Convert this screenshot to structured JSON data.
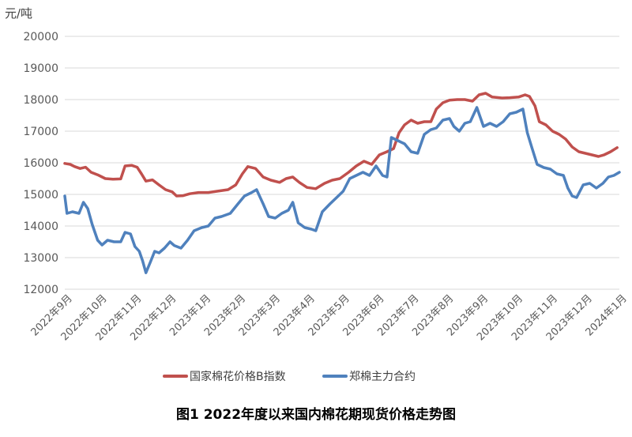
{
  "caption": "图1 2022年度以来国内棉花期现货价格走势图",
  "chart_data": {
    "type": "line",
    "unit_label": "元/吨",
    "ylim": [
      12000,
      20000
    ],
    "yticks": [
      12000,
      13000,
      14000,
      15000,
      16000,
      17000,
      18000,
      19000,
      20000
    ],
    "grid": true,
    "legend_position": "bottom",
    "categories": [
      "2022年9月",
      "2022年10月",
      "2022年11月",
      "2022年12月",
      "2023年1月",
      "2023年2月",
      "2023年3月",
      "2023年4月",
      "2023年5月",
      "2023年6月",
      "2023年7月",
      "2023年8月",
      "2023年9月",
      "2023年10月",
      "2023年11月",
      "2023年12月",
      "2024年1月"
    ],
    "x_start": "2022-09-01",
    "x_end": "2024-01-20",
    "series": [
      {
        "name": "国家棉花价格B指数",
        "color": "#c0504d",
        "points": [
          [
            "2022-09-01",
            15980
          ],
          [
            "2022-09-06",
            15950
          ],
          [
            "2022-09-10",
            15880
          ],
          [
            "2022-09-15",
            15820
          ],
          [
            "2022-09-20",
            15860
          ],
          [
            "2022-09-25",
            15700
          ],
          [
            "2022-10-01",
            15620
          ],
          [
            "2022-10-08",
            15500
          ],
          [
            "2022-10-15",
            15480
          ],
          [
            "2022-10-22",
            15490
          ],
          [
            "2022-10-26",
            15900
          ],
          [
            "2022-11-01",
            15920
          ],
          [
            "2022-11-06",
            15860
          ],
          [
            "2022-11-10",
            15650
          ],
          [
            "2022-11-14",
            15420
          ],
          [
            "2022-11-20",
            15460
          ],
          [
            "2022-11-26",
            15300
          ],
          [
            "2022-12-02",
            15150
          ],
          [
            "2022-12-08",
            15080
          ],
          [
            "2022-12-12",
            14950
          ],
          [
            "2022-12-18",
            14960
          ],
          [
            "2022-12-24",
            15020
          ],
          [
            "2023-01-01",
            15060
          ],
          [
            "2023-01-10",
            15060
          ],
          [
            "2023-01-18",
            15100
          ],
          [
            "2023-01-28",
            15150
          ],
          [
            "2023-02-04",
            15300
          ],
          [
            "2023-02-10",
            15650
          ],
          [
            "2023-02-15",
            15880
          ],
          [
            "2023-02-22",
            15820
          ],
          [
            "2023-03-01",
            15550
          ],
          [
            "2023-03-08",
            15450
          ],
          [
            "2023-03-16",
            15380
          ],
          [
            "2023-03-22",
            15500
          ],
          [
            "2023-03-28",
            15550
          ],
          [
            "2023-04-03",
            15380
          ],
          [
            "2023-04-10",
            15220
          ],
          [
            "2023-04-18",
            15180
          ],
          [
            "2023-04-26",
            15350
          ],
          [
            "2023-05-03",
            15450
          ],
          [
            "2023-05-10",
            15500
          ],
          [
            "2023-05-18",
            15700
          ],
          [
            "2023-05-25",
            15900
          ],
          [
            "2023-06-01",
            16050
          ],
          [
            "2023-06-08",
            15950
          ],
          [
            "2023-06-15",
            16250
          ],
          [
            "2023-06-22",
            16350
          ],
          [
            "2023-06-28",
            16450
          ],
          [
            "2023-07-03",
            16950
          ],
          [
            "2023-07-08",
            17200
          ],
          [
            "2023-07-14",
            17350
          ],
          [
            "2023-07-20",
            17250
          ],
          [
            "2023-07-26",
            17300
          ],
          [
            "2023-08-01",
            17300
          ],
          [
            "2023-08-06",
            17700
          ],
          [
            "2023-08-12",
            17900
          ],
          [
            "2023-08-18",
            17980
          ],
          [
            "2023-08-25",
            18000
          ],
          [
            "2023-09-01",
            18000
          ],
          [
            "2023-09-08",
            17950
          ],
          [
            "2023-09-14",
            18150
          ],
          [
            "2023-09-20",
            18200
          ],
          [
            "2023-09-26",
            18080
          ],
          [
            "2023-10-05",
            18050
          ],
          [
            "2023-10-12",
            18060
          ],
          [
            "2023-10-20",
            18080
          ],
          [
            "2023-10-26",
            18150
          ],
          [
            "2023-10-30",
            18100
          ],
          [
            "2023-11-04",
            17800
          ],
          [
            "2023-11-08",
            17300
          ],
          [
            "2023-11-14",
            17200
          ],
          [
            "2023-11-20",
            17000
          ],
          [
            "2023-11-26",
            16900
          ],
          [
            "2023-12-02",
            16750
          ],
          [
            "2023-12-08",
            16500
          ],
          [
            "2023-12-14",
            16350
          ],
          [
            "2023-12-20",
            16300
          ],
          [
            "2023-12-26",
            16250
          ],
          [
            "2024-01-01",
            16200
          ],
          [
            "2024-01-06",
            16250
          ],
          [
            "2024-01-12",
            16350
          ],
          [
            "2024-01-18",
            16480
          ]
        ]
      },
      {
        "name": "郑棉主力合约",
        "color": "#4f81bd",
        "points": [
          [
            "2022-09-01",
            14950
          ],
          [
            "2022-09-03",
            14400
          ],
          [
            "2022-09-08",
            14450
          ],
          [
            "2022-09-14",
            14400
          ],
          [
            "2022-09-18",
            14750
          ],
          [
            "2022-09-22",
            14550
          ],
          [
            "2022-09-26",
            14050
          ],
          [
            "2022-10-01",
            13550
          ],
          [
            "2022-10-05",
            13400
          ],
          [
            "2022-10-10",
            13550
          ],
          [
            "2022-10-16",
            13500
          ],
          [
            "2022-10-22",
            13500
          ],
          [
            "2022-10-26",
            13800
          ],
          [
            "2022-10-31",
            13750
          ],
          [
            "2022-11-04",
            13350
          ],
          [
            "2022-11-08",
            13200
          ],
          [
            "2022-11-11",
            12900
          ],
          [
            "2022-11-14",
            12520
          ],
          [
            "2022-11-18",
            12850
          ],
          [
            "2022-11-22",
            13200
          ],
          [
            "2022-11-26",
            13150
          ],
          [
            "2022-12-01",
            13300
          ],
          [
            "2022-12-06",
            13500
          ],
          [
            "2022-12-10",
            13380
          ],
          [
            "2022-12-16",
            13300
          ],
          [
            "2022-12-22",
            13550
          ],
          [
            "2022-12-28",
            13850
          ],
          [
            "2023-01-04",
            13950
          ],
          [
            "2023-01-10",
            14000
          ],
          [
            "2023-01-16",
            14250
          ],
          [
            "2023-01-22",
            14300
          ],
          [
            "2023-01-30",
            14400
          ],
          [
            "2023-02-06",
            14700
          ],
          [
            "2023-02-12",
            14950
          ],
          [
            "2023-02-18",
            15050
          ],
          [
            "2023-02-23",
            15150
          ],
          [
            "2023-03-01",
            14700
          ],
          [
            "2023-03-06",
            14300
          ],
          [
            "2023-03-12",
            14250
          ],
          [
            "2023-03-18",
            14400
          ],
          [
            "2023-03-24",
            14500
          ],
          [
            "2023-03-28",
            14750
          ],
          [
            "2023-04-02",
            14100
          ],
          [
            "2023-04-08",
            13950
          ],
          [
            "2023-04-14",
            13900
          ],
          [
            "2023-04-18",
            13850
          ],
          [
            "2023-04-24",
            14450
          ],
          [
            "2023-05-01",
            14700
          ],
          [
            "2023-05-07",
            14900
          ],
          [
            "2023-05-13",
            15100
          ],
          [
            "2023-05-19",
            15500
          ],
          [
            "2023-05-25",
            15600
          ],
          [
            "2023-05-31",
            15700
          ],
          [
            "2023-06-06",
            15600
          ],
          [
            "2023-06-12",
            15900
          ],
          [
            "2023-06-18",
            15600
          ],
          [
            "2023-06-22",
            15550
          ],
          [
            "2023-06-26",
            16800
          ],
          [
            "2023-07-02",
            16700
          ],
          [
            "2023-07-08",
            16600
          ],
          [
            "2023-07-14",
            16350
          ],
          [
            "2023-07-20",
            16300
          ],
          [
            "2023-07-26",
            16900
          ],
          [
            "2023-08-01",
            17050
          ],
          [
            "2023-08-06",
            17100
          ],
          [
            "2023-08-12",
            17350
          ],
          [
            "2023-08-18",
            17400
          ],
          [
            "2023-08-22",
            17150
          ],
          [
            "2023-08-27",
            17000
          ],
          [
            "2023-09-01",
            17250
          ],
          [
            "2023-09-06",
            17300
          ],
          [
            "2023-09-12",
            17750
          ],
          [
            "2023-09-18",
            17150
          ],
          [
            "2023-09-24",
            17250
          ],
          [
            "2023-09-30",
            17150
          ],
          [
            "2023-10-06",
            17300
          ],
          [
            "2023-10-12",
            17550
          ],
          [
            "2023-10-18",
            17600
          ],
          [
            "2023-10-24",
            17700
          ],
          [
            "2023-10-28",
            16950
          ],
          [
            "2023-11-01",
            16500
          ],
          [
            "2023-11-06",
            15950
          ],
          [
            "2023-11-12",
            15850
          ],
          [
            "2023-11-18",
            15800
          ],
          [
            "2023-11-24",
            15650
          ],
          [
            "2023-11-30",
            15600
          ],
          [
            "2023-12-04",
            15200
          ],
          [
            "2023-12-08",
            14950
          ],
          [
            "2023-12-12",
            14900
          ],
          [
            "2023-12-18",
            15300
          ],
          [
            "2023-12-24",
            15350
          ],
          [
            "2023-12-30",
            15200
          ],
          [
            "2024-01-05",
            15350
          ],
          [
            "2024-01-10",
            15550
          ],
          [
            "2024-01-15",
            15600
          ],
          [
            "2024-01-20",
            15700
          ]
        ]
      }
    ]
  }
}
